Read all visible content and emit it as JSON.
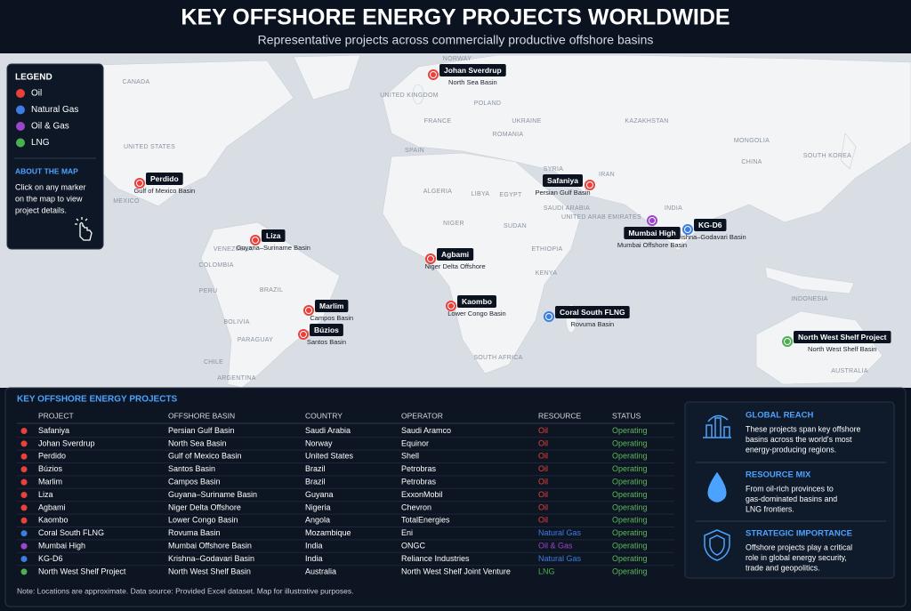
{
  "header": {
    "title": "KEY OFFSHORE ENERGY PROJECTS WORLDWIDE",
    "subtitle": "Representative projects across commercially productive offshore basins"
  },
  "legend": {
    "title": "LEGEND",
    "items": [
      {
        "label": "Oil",
        "color": "#e8413c"
      },
      {
        "label": "Natural Gas",
        "color": "#3b7de0"
      },
      {
        "label": "Oil & Gas",
        "color": "#9b46c9"
      },
      {
        "label": "LNG",
        "color": "#4caf50"
      }
    ],
    "about_title": "ABOUT THE MAP",
    "about_text": [
      "Click on any marker",
      "on the map to view",
      "project details."
    ]
  },
  "map": {
    "countries": [
      "CANADA",
      "UNITED STATES",
      "MEXICO",
      "VENEZUELA",
      "COLOMBIA",
      "PERU",
      "BRAZIL",
      "BOLIVIA",
      "PARAGUAY",
      "CHILE",
      "ARGENTINA",
      "NORWAY",
      "UNITED KINGDOM",
      "POLAND",
      "FRANCE",
      "UKRAINE",
      "ROMANIA",
      "SPAIN",
      "KAZAKHSTAN",
      "MONGOLIA",
      "CHINA",
      "SOUTH KOREA",
      "ALGERIA",
      "LIBYA",
      "EGYPT",
      "SAUDI ARABIA",
      "IRAN",
      "INDIA",
      "NIGER",
      "SUDAN",
      "ETHIOPIA",
      "KENYA",
      "SOUTH AFRICA",
      "INDONESIA",
      "AUSTRALIA",
      "SYRIA",
      "UNITED ARAB EMIRATES"
    ]
  },
  "table": {
    "title": "KEY OFFSHORE ENERGY PROJECTS",
    "status_color": "#5cb85c",
    "columns": [
      "PROJECT",
      "OFFSHORE BASIN",
      "COUNTRY",
      "OPERATOR",
      "RESOURCE",
      "STATUS"
    ],
    "rows": [
      {
        "project": "Safaniya",
        "basin": "Persian Gulf Basin",
        "country": "Saudi Arabia",
        "operator": "Saudi Aramco",
        "resource": "Oil",
        "status": "Operating"
      },
      {
        "project": "Johan Sverdrup",
        "basin": "North Sea Basin",
        "country": "Norway",
        "operator": "Equinor",
        "resource": "Oil",
        "status": "Operating"
      },
      {
        "project": "Perdido",
        "basin": "Gulf of Mexico Basin",
        "country": "United States",
        "operator": "Shell",
        "resource": "Oil",
        "status": "Operating"
      },
      {
        "project": "Búzios",
        "basin": "Santos Basin",
        "country": "Brazil",
        "operator": "Petrobras",
        "resource": "Oil",
        "status": "Operating"
      },
      {
        "project": "Marlim",
        "basin": "Campos Basin",
        "country": "Brazil",
        "operator": "Petrobras",
        "resource": "Oil",
        "status": "Operating"
      },
      {
        "project": "Liza",
        "basin": "Guyana–Suriname Basin",
        "country": "Guyana",
        "operator": "ExxonMobil",
        "resource": "Oil",
        "status": "Operating"
      },
      {
        "project": "Agbami",
        "basin": "Niger Delta Offshore",
        "country": "Nigeria",
        "operator": "Chevron",
        "resource": "Oil",
        "status": "Operating"
      },
      {
        "project": "Kaombo",
        "basin": "Lower Congo Basin",
        "country": "Angola",
        "operator": "TotalEnergies",
        "resource": "Oil",
        "status": "Operating"
      },
      {
        "project": "Coral South FLNG",
        "basin": "Rovuma Basin",
        "country": "Mozambique",
        "operator": "Eni",
        "resource": "Natural Gas",
        "status": "Operating"
      },
      {
        "project": "Mumbai High",
        "basin": "Mumbai Offshore Basin",
        "country": "India",
        "operator": "ONGC",
        "resource": "Oil & Gas",
        "status": "Operating"
      },
      {
        "project": "KG-D6",
        "basin": "Krishna–Godavari Basin",
        "country": "India",
        "operator": "Reliance Industries",
        "resource": "Natural Gas",
        "status": "Operating"
      },
      {
        "project": "North West Shelf Project",
        "basin": "North West Shelf Basin",
        "country": "Australia",
        "operator": "North West Shelf Joint Venture",
        "resource": "LNG",
        "status": "Operating"
      }
    ]
  },
  "side_panel": [
    {
      "title": "GLOBAL REACH",
      "text": [
        "These projects span key offshore",
        "basins across the world's most",
        "energy-producing regions."
      ]
    },
    {
      "title": "RESOURCE MIX",
      "text": [
        "From oil-rich provinces to",
        "gas-dominated basins and",
        "LNG frontiers."
      ]
    },
    {
      "title": "STRATEGIC IMPORTANCE",
      "text": [
        "Offshore projects play a critical",
        "role in global energy security,",
        "trade and geopolitics."
      ]
    }
  ],
  "footer": {
    "note": "Note: Locations are approximate. Data source: Provided Excel dataset. Map for illustrative purposes."
  }
}
